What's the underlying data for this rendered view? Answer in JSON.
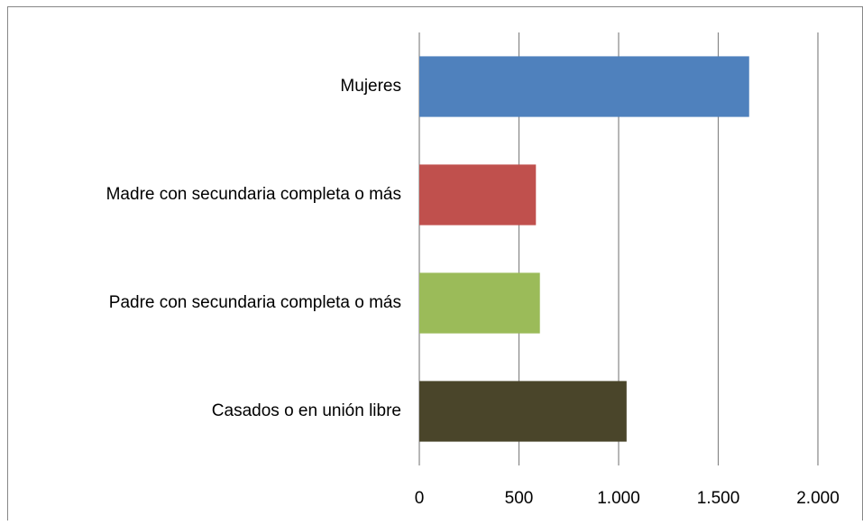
{
  "chart_data": {
    "type": "barh",
    "categories": [
      "Mujeres",
      "Madre con secundaria completa o más",
      "Padre con secundaria completa o más",
      "Casados o en unión libre"
    ],
    "values": [
      1655,
      585,
      605,
      1040
    ],
    "colors": [
      "#4f81bd",
      "#c0504d",
      "#9bbb59",
      "#4a452a"
    ],
    "xlim": [
      0,
      2000
    ],
    "xticks": [
      0,
      500,
      {
        "value": 1000,
        "label": "1.000"
      },
      {
        "value": 1500,
        "label": "1.500"
      },
      {
        "value": 2000,
        "label": "2.000"
      }
    ],
    "grid": true
  }
}
